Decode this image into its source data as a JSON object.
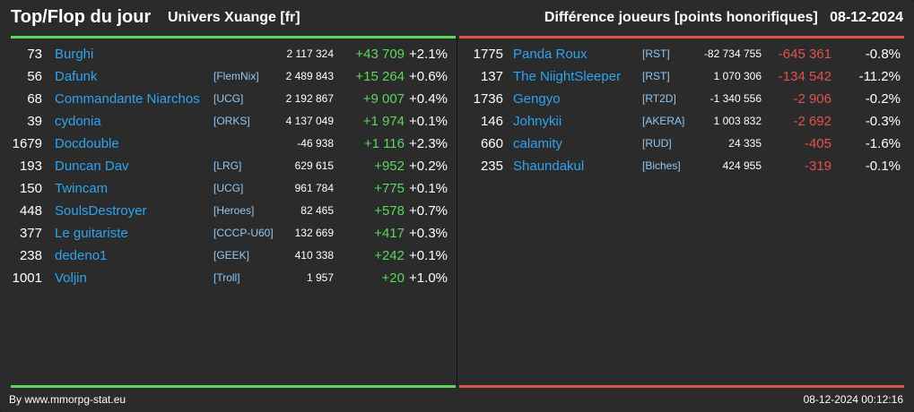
{
  "header": {
    "title": "Top/Flop du jour",
    "subtitle": "Univers Xuange [fr]",
    "right_title": "Différence joueurs [points honorifiques]   08-12-2024"
  },
  "colors": {
    "top_accent": "#5cd65c",
    "flop_accent": "#d9534f",
    "name_link": "#2ea3ef"
  },
  "top": [
    {
      "rank": "73",
      "name": "Burghi",
      "guild": "",
      "score": "2 117 324",
      "diff": "+43 709",
      "pct": "+2.1%"
    },
    {
      "rank": "56",
      "name": "Dafunk",
      "guild": "[FlemNix]",
      "score": "2 489 843",
      "diff": "+15 264",
      "pct": "+0.6%"
    },
    {
      "rank": "68",
      "name": "Commandante Niarchos",
      "guild": "[UCG]",
      "score": "2 192 867",
      "diff": "+9 007",
      "pct": "+0.4%"
    },
    {
      "rank": "39",
      "name": "cydonia",
      "guild": "[ORKS]",
      "score": "4 137 049",
      "diff": "+1 974",
      "pct": "+0.1%"
    },
    {
      "rank": "1679",
      "name": "Docdouble",
      "guild": "",
      "score": "-46 938",
      "diff": "+1 116",
      "pct": "+2.3%"
    },
    {
      "rank": "193",
      "name": "Duncan Dav",
      "guild": "[LRG]",
      "score": "629 615",
      "diff": "+952",
      "pct": "+0.2%"
    },
    {
      "rank": "150",
      "name": "Twincam",
      "guild": "[UCG]",
      "score": "961 784",
      "diff": "+775",
      "pct": "+0.1%"
    },
    {
      "rank": "448",
      "name": "SoulsDestroyer",
      "guild": "[Heroes]",
      "score": "82 465",
      "diff": "+578",
      "pct": "+0.7%"
    },
    {
      "rank": "377",
      "name": "Le guitariste",
      "guild": "[CCCP-U60]",
      "score": "132 669",
      "diff": "+417",
      "pct": "+0.3%"
    },
    {
      "rank": "238",
      "name": "dedeno1",
      "guild": "[GEEK]",
      "score": "410 338",
      "diff": "+242",
      "pct": "+0.1%"
    },
    {
      "rank": "1001",
      "name": "Voljin",
      "guild": "[Troll]",
      "score": "1 957",
      "diff": "+20",
      "pct": "+1.0%"
    }
  ],
  "flop": [
    {
      "rank": "1775",
      "name": "Panda Roux",
      "guild": "[RST]",
      "score": "-82 734 755",
      "diff": "-645 361",
      "pct": "-0.8%"
    },
    {
      "rank": "137",
      "name": "The NiightSleeper",
      "guild": "[RST]",
      "score": "1 070 306",
      "diff": "-134 542",
      "pct": "-11.2%"
    },
    {
      "rank": "1736",
      "name": "Gengyo",
      "guild": "[RT2D]",
      "score": "-1 340 556",
      "diff": "-2 906",
      "pct": "-0.2%"
    },
    {
      "rank": "146",
      "name": "Johnykii",
      "guild": "[AKERA]",
      "score": "1 003 832",
      "diff": "-2 692",
      "pct": "-0.3%"
    },
    {
      "rank": "660",
      "name": "calamity",
      "guild": "[RUD]",
      "score": "24 335",
      "diff": "-405",
      "pct": "-1.6%"
    },
    {
      "rank": "235",
      "name": "Shaundakul",
      "guild": "[Biches]",
      "score": "424 955",
      "diff": "-319",
      "pct": "-0.1%"
    }
  ],
  "footer": {
    "left": "By www.mmorpg-stat.eu",
    "right": "08-12-2024 00:12:16"
  }
}
